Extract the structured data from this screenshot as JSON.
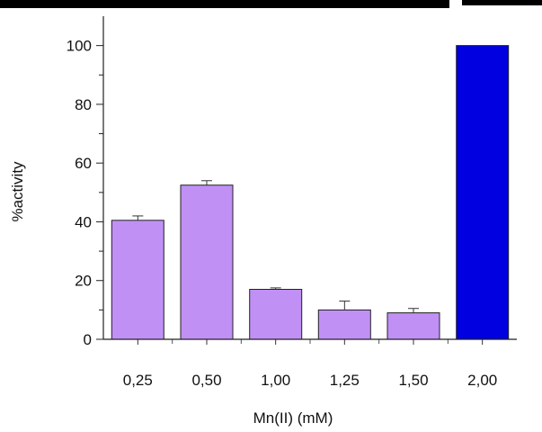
{
  "chart_data": {
    "type": "bar",
    "categories": [
      "0,25",
      "0,50",
      "1,00",
      "1,25",
      "1,50",
      "2,00"
    ],
    "values": [
      40.5,
      52.5,
      17,
      10,
      9,
      100
    ],
    "errors": [
      1.5,
      1.5,
      0.5,
      3,
      1.5,
      0
    ],
    "bar_colors": [
      "#c090f5",
      "#c090f5",
      "#c090f5",
      "#c090f5",
      "#c090f5",
      "#0000e0"
    ],
    "xlabel": "Mn(II) (mM)",
    "ylabel": "%activity",
    "ylim": [
      0,
      110
    ],
    "yticks": [
      0,
      20,
      40,
      60,
      80,
      100
    ],
    "yticks_minor": [
      10,
      30,
      50,
      70,
      90
    ],
    "grid": false,
    "legend": "none"
  }
}
